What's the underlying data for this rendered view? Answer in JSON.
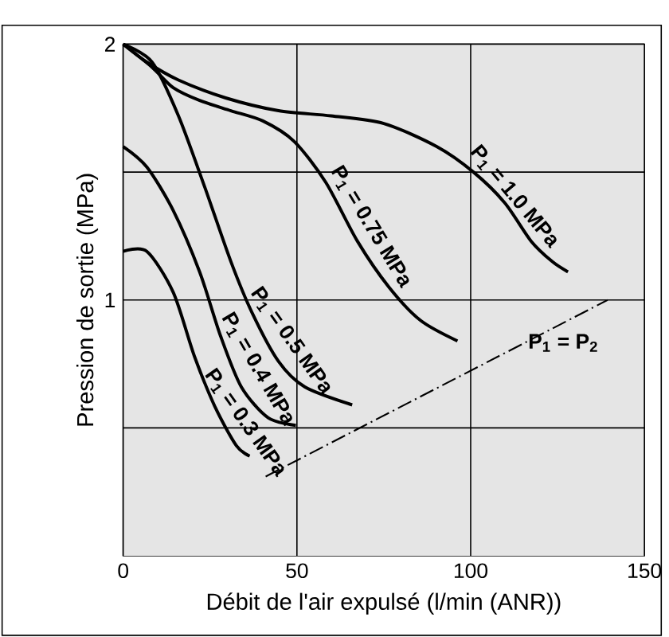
{
  "chart_data": {
    "type": "line",
    "xlabel": "Débit de l'air expulsé (l/min (ANR))",
    "ylabel": "Pression de sortie (MPa)",
    "xlim": [
      0,
      150
    ],
    "ylim": [
      0,
      2
    ],
    "xticks": [
      0,
      50,
      100,
      150
    ],
    "yticks": [
      {
        "value": 0.5,
        "label": null
      },
      1,
      {
        "value": 1.5,
        "label": null
      },
      2
    ],
    "grid": true,
    "series": [
      {
        "name": "P$_{1}$ = 0.3 MPa",
        "color": "#000000",
        "x": [
          0,
          6.8,
          14.4,
          20.5,
          26.5,
          32.6,
          36.4
        ],
        "values": [
          1.19,
          1.19,
          1.03,
          0.78,
          0.58,
          0.43,
          0.39
        ]
      },
      {
        "name": "P$_{1}$ = 0.4 MPa",
        "color": "#000000",
        "x": [
          0,
          6.8,
          14.4,
          22,
          28,
          34,
          41.7,
          49.7
        ],
        "values": [
          1.6,
          1.52,
          1.35,
          1.11,
          0.86,
          0.66,
          0.54,
          0.51
        ]
      },
      {
        "name": "P$_{1}$ = 0.5 MPa",
        "color": "#000000",
        "x": [
          0,
          8.3,
          15.9,
          23.5,
          31,
          37.1,
          44.7,
          52.3,
          65.9
        ],
        "values": [
          2,
          1.93,
          1.72,
          1.44,
          1.15,
          0.95,
          0.76,
          0.66,
          0.59
        ]
      },
      {
        "name": "P$_{1}$ = 0.75 MPa",
        "color": "#000000",
        "x": [
          0,
          8.3,
          14.4,
          22,
          31,
          40.2,
          49.2,
          58.3,
          67.4,
          76.5,
          85.6,
          96.2
        ],
        "values": [
          2,
          1.91,
          1.83,
          1.78,
          1.74,
          1.7,
          1.62,
          1.46,
          1.23,
          1.05,
          0.92,
          0.84
        ]
      },
      {
        "name": "P$_{1}$ = 1.0 MPa",
        "color": "#000000",
        "x": [
          0,
          6.8,
          15.9,
          29.5,
          44.7,
          59.8,
          75,
          90.2,
          100.8,
          109.8,
          117.4,
          123.5,
          128
        ],
        "values": [
          2,
          1.93,
          1.86,
          1.79,
          1.74,
          1.72,
          1.69,
          1.6,
          1.5,
          1.38,
          1.23,
          1.15,
          1.11
        ]
      },
      {
        "name": "P$_{1}$ = P$_{2}$",
        "color": "#000000",
        "line_style": "dashed",
        "x": [
          41,
          139.4
        ],
        "values": [
          0.31,
          1.0
        ]
      }
    ]
  }
}
